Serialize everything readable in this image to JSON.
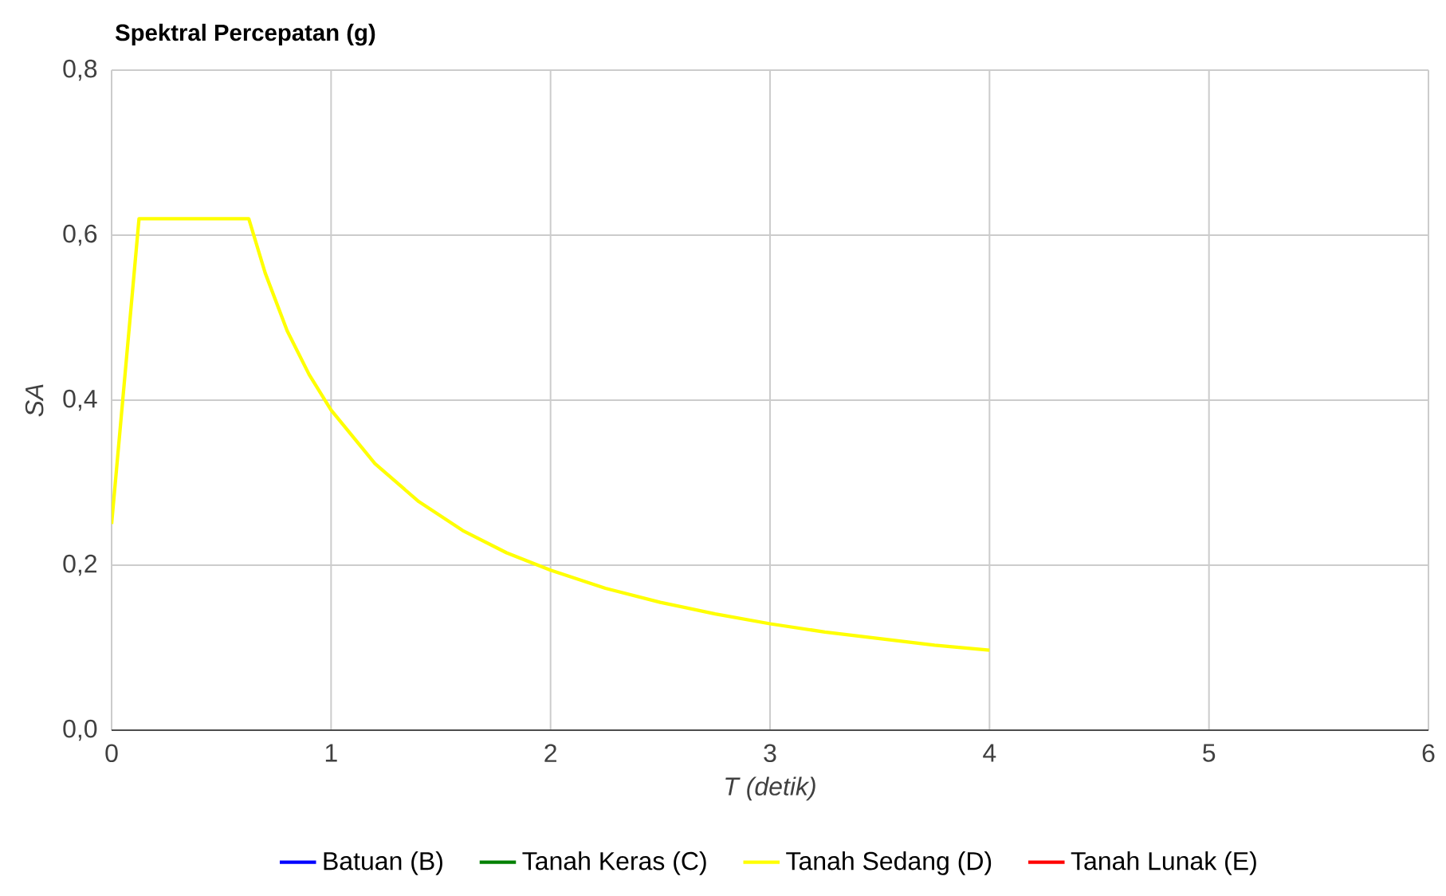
{
  "chart_data": {
    "type": "line",
    "title": "Spektral Percepatan (g)",
    "xlabel": "T (detik)",
    "ylabel": "SA",
    "xlim": [
      0,
      6
    ],
    "xticks": [
      0,
      1,
      2,
      3,
      4,
      5,
      6
    ],
    "ylim": [
      0,
      0.8
    ],
    "yticks": [
      {
        "value": 0,
        "label": "0,0"
      },
      {
        "value": 0.2,
        "label": "0,2"
      },
      {
        "value": 0.4,
        "label": "0,4"
      },
      {
        "value": 0.6,
        "label": "0,6"
      },
      {
        "value": 0.8,
        "label": "0,8"
      }
    ],
    "grid": true,
    "legend": "bottom",
    "marker": "none",
    "line_style": "solid",
    "series": [
      {
        "name": "Batuan (B)",
        "color": "#0000ff"
      },
      {
        "name": "Tanah Keras (C)",
        "color": "#008000"
      },
      {
        "name": "Tanah Sedang (D)",
        "color": "#ffff00",
        "x": [
          0,
          0.125,
          0.625,
          0.7,
          0.8,
          0.9,
          1.0,
          1.2,
          1.4,
          1.6,
          1.8,
          2.0,
          2.25,
          2.5,
          2.75,
          3.0,
          3.25,
          3.5,
          3.75,
          4.0
        ],
        "values": [
          0.25,
          0.62,
          0.62,
          0.554,
          0.484,
          0.431,
          0.388,
          0.323,
          0.277,
          0.242,
          0.215,
          0.194,
          0.172,
          0.155,
          0.141,
          0.129,
          0.119,
          0.111,
          0.103,
          0.097
        ]
      },
      {
        "name": "Tanah Lunak (E)",
        "color": "#ff0000"
      }
    ]
  }
}
